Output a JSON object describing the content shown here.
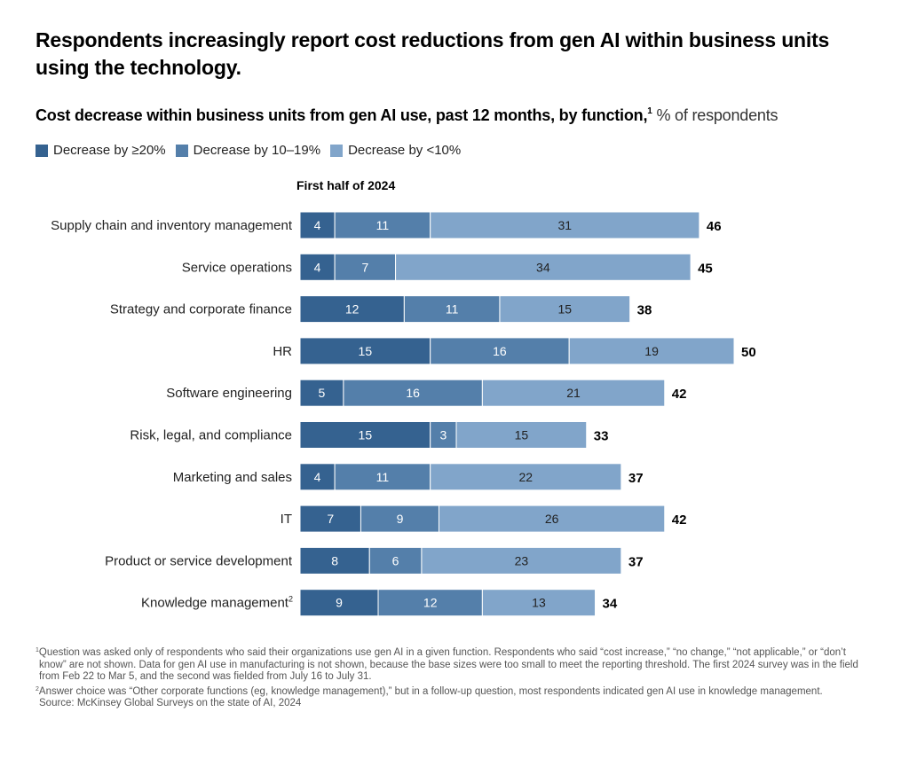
{
  "title": "Respondents increasingly report cost reductions from gen AI within business units using the technology.",
  "subtitle": {
    "main": "Cost decrease within business units from gen AI use, past 12 months, by function,",
    "footnote_marker": "1",
    "unit": " % of respondents"
  },
  "colors": {
    "decrease_20_plus": "#356290",
    "decrease_10_19": "#547faa",
    "decrease_under_10": "#81a5ca",
    "label_dark_segment": "#ffffff",
    "label_light_segment": "#222222",
    "total_label": "#000000"
  },
  "chart_data": {
    "type": "bar",
    "orientation": "horizontal",
    "stacked": true,
    "title": "Cost decrease within business units from gen AI use, past 12 months, by function",
    "period_label": "First half of 2024",
    "xlabel": "% of respondents",
    "ylabel": "",
    "xlim": [
      0,
      50
    ],
    "grid": false,
    "legend_position": "top-left",
    "categories": [
      "Supply chain and inventory management",
      "Service operations",
      "Strategy and corporate finance",
      "HR",
      "Software engineering",
      "Risk, legal, and compliance",
      "Marketing and sales",
      "IT",
      "Product or service development",
      "Knowledge management"
    ],
    "category_footnotes": [
      "",
      "",
      "",
      "",
      "",
      "",
      "",
      "",
      "",
      "2"
    ],
    "series": [
      {
        "name": "Decrease by ≥20%",
        "values": [
          4,
          4,
          12,
          15,
          5,
          15,
          4,
          7,
          8,
          9
        ]
      },
      {
        "name": "Decrease by 10–19%",
        "values": [
          11,
          7,
          11,
          16,
          16,
          3,
          11,
          9,
          6,
          12
        ]
      },
      {
        "name": "Decrease by <10%",
        "values": [
          31,
          34,
          15,
          19,
          21,
          15,
          22,
          26,
          23,
          13
        ]
      }
    ],
    "totals": [
      46,
      45,
      38,
      50,
      42,
      33,
      37,
      42,
      37,
      34
    ]
  },
  "footnotes": {
    "note1_marker": "1",
    "note1": "Question was asked only of respondents who said their organizations use gen AI in a given function. Respondents who said “cost increase,” “no change,” “not applicable,” or “don’t know” are not shown. Data for gen AI use in manufacturing is not shown, because the base sizes were too small to meet the reporting threshold. The first 2024 survey was in the field from Feb 22 to Mar 5, and the second was fielded from July 16 to July 31.",
    "note2_marker": "2",
    "note2": "Answer choice was “Other corporate functions (eg, knowledge management),” but in a follow-up question, most respondents indicated gen AI use in knowledge management.",
    "source": "Source: McKinsey Global Surveys on the state of AI, 2024"
  }
}
